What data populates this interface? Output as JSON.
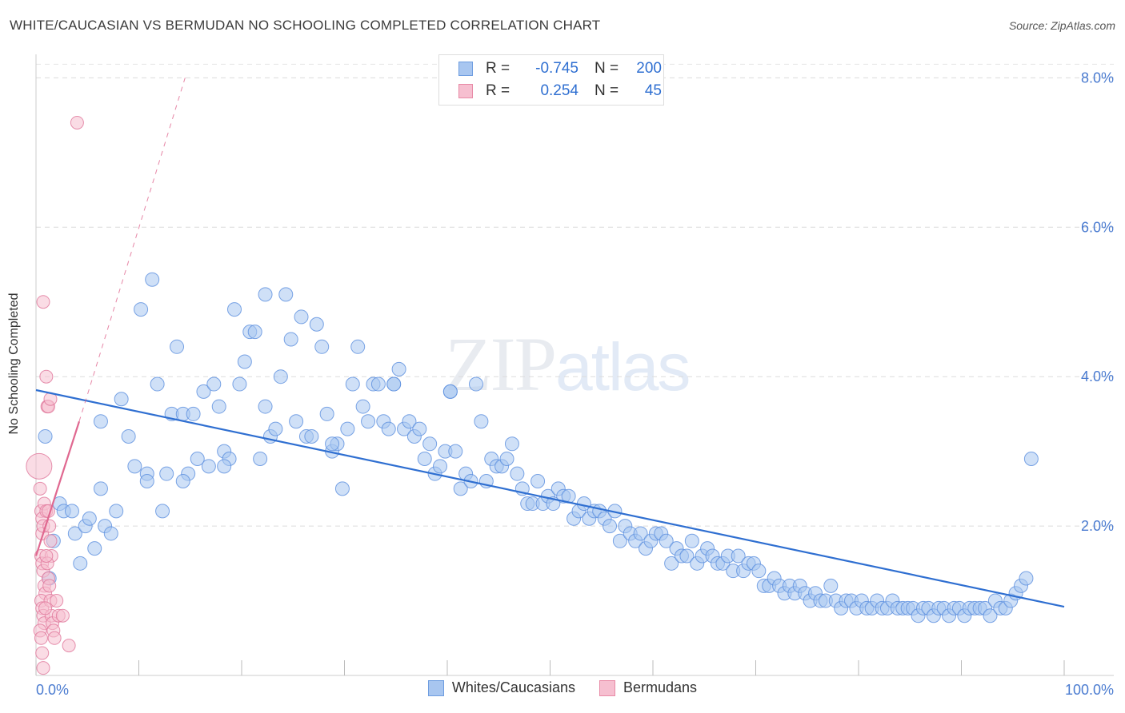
{
  "header": {
    "title": "WHITE/CAUCASIAN VS BERMUDAN NO SCHOOLING COMPLETED CORRELATION CHART",
    "source": "Source: ZipAtlas.com"
  },
  "watermark": {
    "zip": "ZIP",
    "atlas": "atlas"
  },
  "legend_top": [
    {
      "r_label": "R =",
      "r_value": "-0.745",
      "n_label": "N =",
      "n_value": "200",
      "color": "#a8c6f0",
      "border": "#6e9de0"
    },
    {
      "r_label": "R =",
      "r_value": "0.254",
      "n_label": "N =",
      "n_value": "45",
      "color": "#f6bfd0",
      "border": "#e88aa6"
    }
  ],
  "legend_bottom": [
    {
      "label": "Whites/Caucasians",
      "color": "#a8c6f0",
      "border": "#6e9de0"
    },
    {
      "label": "Bermudans",
      "color": "#f6bfd0",
      "border": "#e88aa6"
    }
  ],
  "chart_data": {
    "type": "scatter",
    "title": "WHITE/CAUCASIAN VS BERMUDAN NO SCHOOLING COMPLETED CORRELATION CHART",
    "xlabel": "",
    "ylabel": "No Schooling Completed",
    "xlim": [
      0,
      100
    ],
    "ylim": [
      0,
      8.4
    ],
    "x_tick_labels": [
      "0.0%",
      "100.0%"
    ],
    "y_ticks": [
      2,
      4,
      6,
      8
    ],
    "y_tick_labels": [
      "2.0%",
      "4.0%",
      "6.0%",
      "8.0%"
    ],
    "grid": true,
    "colors": {
      "white": "#5b8fde",
      "white_fill": "#a8c6f0",
      "bermudan": "#e0759a",
      "bermudan_fill": "#f6bfd0",
      "trend_white": "#2f6fd1",
      "trend_bermudan": "#e06890"
    },
    "series": [
      {
        "name": "Whites/Caucasians",
        "trend": {
          "x": [
            0,
            100
          ],
          "y": [
            3.82,
            0.92
          ]
        },
        "points": [
          [
            0.9,
            3.2
          ],
          [
            1.3,
            1.3
          ],
          [
            1.7,
            1.8
          ],
          [
            2.3,
            2.3
          ],
          [
            2.7,
            2.2
          ],
          [
            3.5,
            2.2
          ],
          [
            3.8,
            1.9
          ],
          [
            4.3,
            1.5
          ],
          [
            4.8,
            2.0
          ],
          [
            5.2,
            2.1
          ],
          [
            5.7,
            1.7
          ],
          [
            6.3,
            3.4
          ],
          [
            6.7,
            2.0
          ],
          [
            7.3,
            1.9
          ],
          [
            7.8,
            2.2
          ],
          [
            8.3,
            3.7
          ],
          [
            9.0,
            3.2
          ],
          [
            9.6,
            2.8
          ],
          [
            10.2,
            4.9
          ],
          [
            10.8,
            2.7
          ],
          [
            11.3,
            5.3
          ],
          [
            11.8,
            3.9
          ],
          [
            12.3,
            2.2
          ],
          [
            12.7,
            2.7
          ],
          [
            13.2,
            3.5
          ],
          [
            13.7,
            4.4
          ],
          [
            14.3,
            3.5
          ],
          [
            14.8,
            2.7
          ],
          [
            15.3,
            3.5
          ],
          [
            15.7,
            2.9
          ],
          [
            16.3,
            3.8
          ],
          [
            16.8,
            2.8
          ],
          [
            17.3,
            3.9
          ],
          [
            17.8,
            3.6
          ],
          [
            18.3,
            3.0
          ],
          [
            18.8,
            2.9
          ],
          [
            19.3,
            4.9
          ],
          [
            19.8,
            3.9
          ],
          [
            20.3,
            4.2
          ],
          [
            20.8,
            4.6
          ],
          [
            21.3,
            4.6
          ],
          [
            21.8,
            2.9
          ],
          [
            22.3,
            5.1
          ],
          [
            22.8,
            3.2
          ],
          [
            23.3,
            3.3
          ],
          [
            23.8,
            4.0
          ],
          [
            24.3,
            5.1
          ],
          [
            24.8,
            4.5
          ],
          [
            25.3,
            3.4
          ],
          [
            25.8,
            4.8
          ],
          [
            26.3,
            3.2
          ],
          [
            26.8,
            3.2
          ],
          [
            27.3,
            4.7
          ],
          [
            27.8,
            4.4
          ],
          [
            28.3,
            3.5
          ],
          [
            28.8,
            3.0
          ],
          [
            29.3,
            3.1
          ],
          [
            29.8,
            2.5
          ],
          [
            30.3,
            3.3
          ],
          [
            30.8,
            3.9
          ],
          [
            31.3,
            4.4
          ],
          [
            31.8,
            3.6
          ],
          [
            32.3,
            3.4
          ],
          [
            32.8,
            3.9
          ],
          [
            33.3,
            3.9
          ],
          [
            33.8,
            3.4
          ],
          [
            34.3,
            3.3
          ],
          [
            34.8,
            3.9
          ],
          [
            35.3,
            4.1
          ],
          [
            35.8,
            3.3
          ],
          [
            36.3,
            3.4
          ],
          [
            36.8,
            3.2
          ],
          [
            37.3,
            3.3
          ],
          [
            37.8,
            2.9
          ],
          [
            38.3,
            3.1
          ],
          [
            38.8,
            2.7
          ],
          [
            39.3,
            2.8
          ],
          [
            39.8,
            3.0
          ],
          [
            40.3,
            3.8
          ],
          [
            40.8,
            3.0
          ],
          [
            41.3,
            2.5
          ],
          [
            41.8,
            2.7
          ],
          [
            42.3,
            2.6
          ],
          [
            42.8,
            3.9
          ],
          [
            43.3,
            3.4
          ],
          [
            43.8,
            2.6
          ],
          [
            44.3,
            2.9
          ],
          [
            44.8,
            2.8
          ],
          [
            45.3,
            2.8
          ],
          [
            45.8,
            2.9
          ],
          [
            46.3,
            3.1
          ],
          [
            46.8,
            2.7
          ],
          [
            47.3,
            2.5
          ],
          [
            47.8,
            2.3
          ],
          [
            48.3,
            2.3
          ],
          [
            48.8,
            2.6
          ],
          [
            49.3,
            2.3
          ],
          [
            49.8,
            2.4
          ],
          [
            50.3,
            2.3
          ],
          [
            50.8,
            2.5
          ],
          [
            51.3,
            2.4
          ],
          [
            51.8,
            2.4
          ],
          [
            52.3,
            2.1
          ],
          [
            52.8,
            2.2
          ],
          [
            53.3,
            2.3
          ],
          [
            53.8,
            2.1
          ],
          [
            54.3,
            2.2
          ],
          [
            54.8,
            2.2
          ],
          [
            55.3,
            2.1
          ],
          [
            55.8,
            2.0
          ],
          [
            56.3,
            2.2
          ],
          [
            56.8,
            1.8
          ],
          [
            57.3,
            2.0
          ],
          [
            57.8,
            1.9
          ],
          [
            58.3,
            1.8
          ],
          [
            58.8,
            1.9
          ],
          [
            59.3,
            1.7
          ],
          [
            59.8,
            1.8
          ],
          [
            60.3,
            1.9
          ],
          [
            60.8,
            1.9
          ],
          [
            61.3,
            1.8
          ],
          [
            61.8,
            1.5
          ],
          [
            62.3,
            1.7
          ],
          [
            62.8,
            1.6
          ],
          [
            63.3,
            1.6
          ],
          [
            63.8,
            1.8
          ],
          [
            64.3,
            1.5
          ],
          [
            64.8,
            1.6
          ],
          [
            65.3,
            1.7
          ],
          [
            65.8,
            1.6
          ],
          [
            66.3,
            1.5
          ],
          [
            66.8,
            1.5
          ],
          [
            67.3,
            1.6
          ],
          [
            67.8,
            1.4
          ],
          [
            68.3,
            1.6
          ],
          [
            68.8,
            1.4
          ],
          [
            69.3,
            1.5
          ],
          [
            69.8,
            1.5
          ],
          [
            70.3,
            1.4
          ],
          [
            70.8,
            1.2
          ],
          [
            71.3,
            1.2
          ],
          [
            71.8,
            1.3
          ],
          [
            72.3,
            1.2
          ],
          [
            72.8,
            1.1
          ],
          [
            73.3,
            1.2
          ],
          [
            73.8,
            1.1
          ],
          [
            74.3,
            1.2
          ],
          [
            74.8,
            1.1
          ],
          [
            75.3,
            1.0
          ],
          [
            75.8,
            1.1
          ],
          [
            76.3,
            1.0
          ],
          [
            76.8,
            1.0
          ],
          [
            77.3,
            1.2
          ],
          [
            77.8,
            1.0
          ],
          [
            78.3,
            0.9
          ],
          [
            78.8,
            1.0
          ],
          [
            79.3,
            1.0
          ],
          [
            79.8,
            0.9
          ],
          [
            80.3,
            1.0
          ],
          [
            80.8,
            0.9
          ],
          [
            81.3,
            0.9
          ],
          [
            81.8,
            1.0
          ],
          [
            82.3,
            0.9
          ],
          [
            82.8,
            0.9
          ],
          [
            83.3,
            1.0
          ],
          [
            83.8,
            0.9
          ],
          [
            84.3,
            0.9
          ],
          [
            84.8,
            0.9
          ],
          [
            85.3,
            0.9
          ],
          [
            85.8,
            0.8
          ],
          [
            86.3,
            0.9
          ],
          [
            86.8,
            0.9
          ],
          [
            87.3,
            0.8
          ],
          [
            87.8,
            0.9
          ],
          [
            88.3,
            0.9
          ],
          [
            88.8,
            0.8
          ],
          [
            89.3,
            0.9
          ],
          [
            89.8,
            0.9
          ],
          [
            90.3,
            0.8
          ],
          [
            90.8,
            0.9
          ],
          [
            91.3,
            0.9
          ],
          [
            91.8,
            0.9
          ],
          [
            92.3,
            0.9
          ],
          [
            92.8,
            0.8
          ],
          [
            93.3,
            1.0
          ],
          [
            93.8,
            0.9
          ],
          [
            94.3,
            0.9
          ],
          [
            94.8,
            1.0
          ],
          [
            95.3,
            1.1
          ],
          [
            95.8,
            1.2
          ],
          [
            96.3,
            1.3
          ],
          [
            96.8,
            2.9
          ],
          [
            22.3,
            3.6
          ],
          [
            18.3,
            2.8
          ],
          [
            14.3,
            2.6
          ],
          [
            10.8,
            2.6
          ],
          [
            6.3,
            2.5
          ],
          [
            28.8,
            3.1
          ],
          [
            34.8,
            3.9
          ],
          [
            40.3,
            3.8
          ]
        ]
      },
      {
        "name": "Bermudans",
        "trend": {
          "x": [
            0,
            4.2
          ],
          "y": [
            1.6,
            3.4
          ],
          "x_dash": [
            4.2,
            14.5
          ],
          "y_dash": [
            3.4,
            8.0
          ]
        },
        "points": [
          [
            0.3,
            2.8
          ],
          [
            0.4,
            2.5
          ],
          [
            0.5,
            2.2
          ],
          [
            0.6,
            2.1
          ],
          [
            0.6,
            1.9
          ],
          [
            0.7,
            2.0
          ],
          [
            0.8,
            2.3
          ],
          [
            0.5,
            1.6
          ],
          [
            0.6,
            1.5
          ],
          [
            0.7,
            1.4
          ],
          [
            0.8,
            1.2
          ],
          [
            0.9,
            1.1
          ],
          [
            0.5,
            1.0
          ],
          [
            0.6,
            0.9
          ],
          [
            0.7,
            0.8
          ],
          [
            0.8,
            0.7
          ],
          [
            0.4,
            0.6
          ],
          [
            0.5,
            0.5
          ],
          [
            0.6,
            0.3
          ],
          [
            0.7,
            0.1
          ],
          [
            0.7,
            5.0
          ],
          [
            1.0,
            4.0
          ],
          [
            1.1,
            3.6
          ],
          [
            1.2,
            3.6
          ],
          [
            1.4,
            3.7
          ],
          [
            1.0,
            2.2
          ],
          [
            1.2,
            2.2
          ],
          [
            1.3,
            2.0
          ],
          [
            1.4,
            1.8
          ],
          [
            1.5,
            1.6
          ],
          [
            1.1,
            1.5
          ],
          [
            1.2,
            1.3
          ],
          [
            1.3,
            1.2
          ],
          [
            1.4,
            1.0
          ],
          [
            1.5,
            0.8
          ],
          [
            1.6,
            0.7
          ],
          [
            1.7,
            0.6
          ],
          [
            1.8,
            0.5
          ],
          [
            2.0,
            1.0
          ],
          [
            2.2,
            0.8
          ],
          [
            2.6,
            0.8
          ],
          [
            3.2,
            0.4
          ],
          [
            4.0,
            7.4
          ],
          [
            0.9,
            0.9
          ],
          [
            1.0,
            1.6
          ]
        ]
      }
    ]
  }
}
